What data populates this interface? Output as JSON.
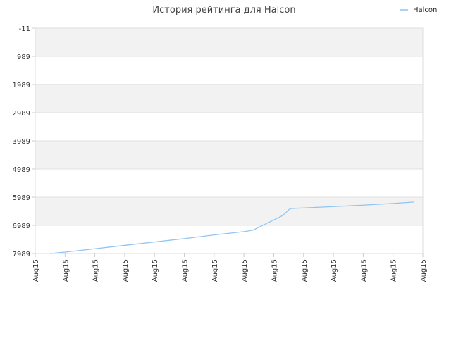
{
  "chart_data": {
    "type": "line",
    "title": "История рейтинга для Halcon",
    "xlabel": "",
    "ylabel": "",
    "legend": {
      "position": "top-right"
    },
    "grid": true,
    "y_inverted": true,
    "ylim": [
      -11,
      7989
    ],
    "yticks": [
      "-11",
      "989",
      "1989",
      "2989",
      "3989",
      "4989",
      "5989",
      "6989",
      "7989"
    ],
    "x_tick_labels": [
      "Aug15",
      "Aug15",
      "Aug15",
      "Aug15",
      "Aug15",
      "Aug15",
      "Aug15",
      "Aug15",
      "Aug15",
      "Aug15",
      "Aug15",
      "Aug15",
      "Aug15",
      "Aug15"
    ],
    "colors": {
      "series": "#90c4f2",
      "band": "#f2f2f2",
      "grid": "#e0e0e0"
    },
    "series": [
      {
        "name": "Halcon",
        "x": [
          0.5,
          1,
          2,
          3,
          4,
          5,
          6,
          7,
          7.3,
          8.3,
          8.55,
          9,
          10,
          11,
          12,
          12.7
        ],
        "values": [
          7989,
          7940,
          7820,
          7700,
          7580,
          7460,
          7330,
          7210,
          7160,
          6640,
          6390,
          6370,
          6320,
          6270,
          6210,
          6160
        ]
      }
    ]
  }
}
